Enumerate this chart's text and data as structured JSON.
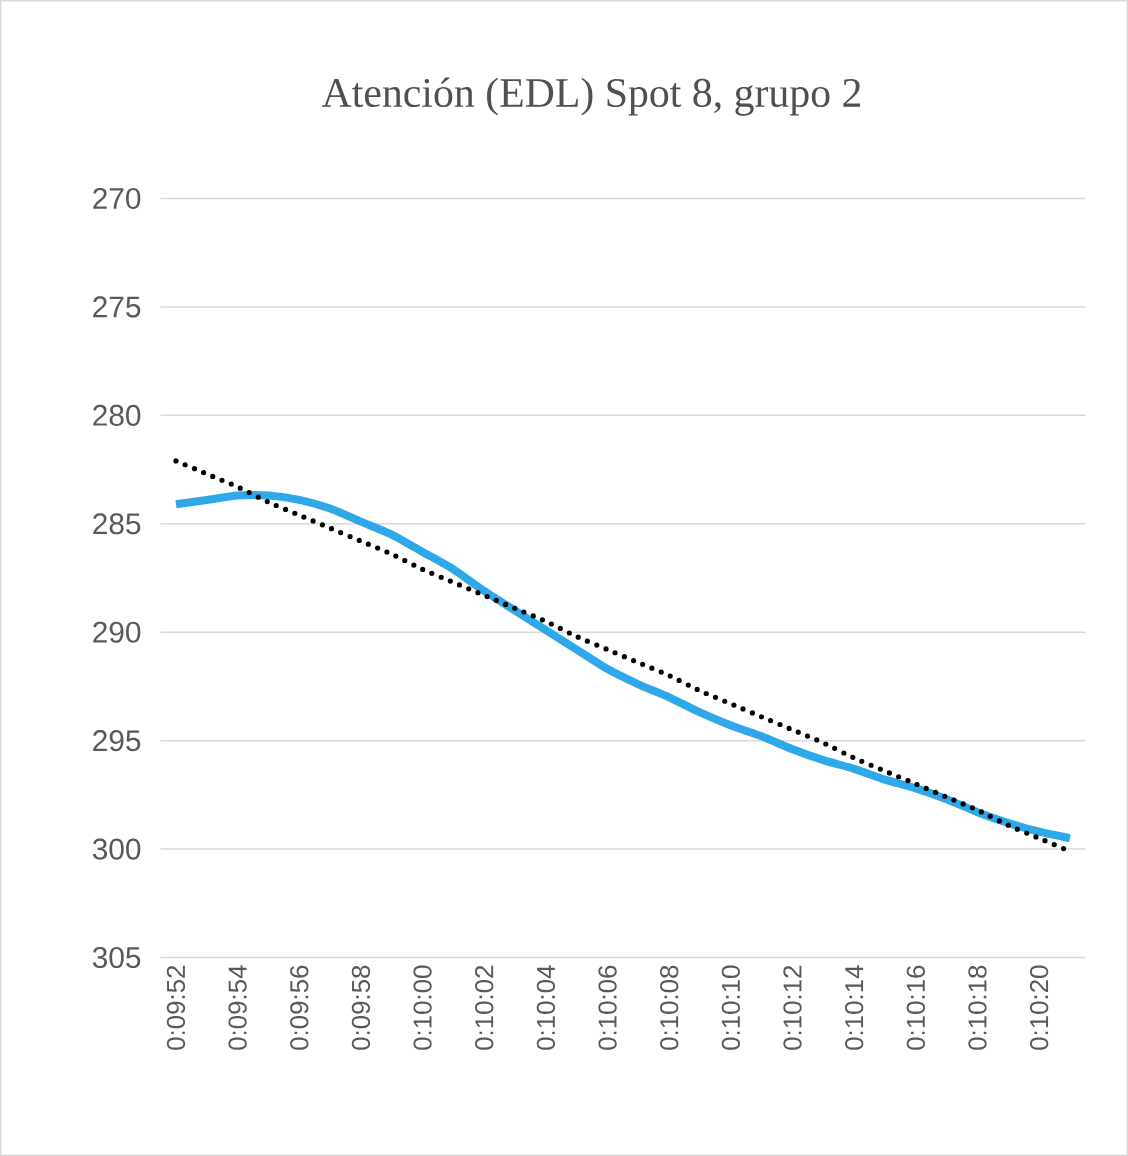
{
  "chart_data": {
    "type": "line",
    "title": "Atención (EDL) Spot 8, grupo 2",
    "categories": [
      "0:09:52",
      null,
      "0:09:54",
      null,
      "0:09:56",
      null,
      "0:09:58",
      null,
      "0:10:00",
      null,
      "0:10:02",
      null,
      "0:10:04",
      null,
      "0:10:06",
      null,
      "0:10:08",
      null,
      "0:10:10",
      null,
      "0:10:12",
      null,
      "0:10:14",
      null,
      "0:10:16",
      null,
      "0:10:18",
      null,
      "0:10:20",
      null
    ],
    "series": [
      {
        "line_style": "solid",
        "color": "#2ea8e8",
        "values": [
          284.1,
          283.9,
          283.7,
          283.7,
          283.9,
          284.3,
          284.9,
          285.5,
          286.3,
          287.1,
          288.1,
          289.0,
          289.9,
          290.8,
          291.7,
          292.4,
          293.0,
          293.7,
          294.3,
          294.8,
          295.4,
          295.9,
          296.3,
          296.8,
          297.2,
          297.7,
          298.3,
          298.8,
          299.2,
          299.5
        ]
      },
      {
        "line_style": "dotted",
        "color": "#000000",
        "values": [
          282.1,
          282.7,
          283.3,
          284.0,
          284.6,
          285.2,
          285.8,
          286.4,
          287.1,
          287.7,
          288.3,
          288.9,
          289.5,
          290.2,
          290.8,
          291.4,
          292.0,
          292.7,
          293.3,
          293.9,
          294.5,
          295.1,
          295.8,
          296.4,
          297.0,
          297.6,
          298.2,
          298.9,
          299.5,
          300.1
        ]
      }
    ],
    "ylim": [
      305,
      270
    ],
    "yticks": [
      270,
      275,
      280,
      285,
      290,
      295,
      300,
      305
    ],
    "grid": "y"
  }
}
